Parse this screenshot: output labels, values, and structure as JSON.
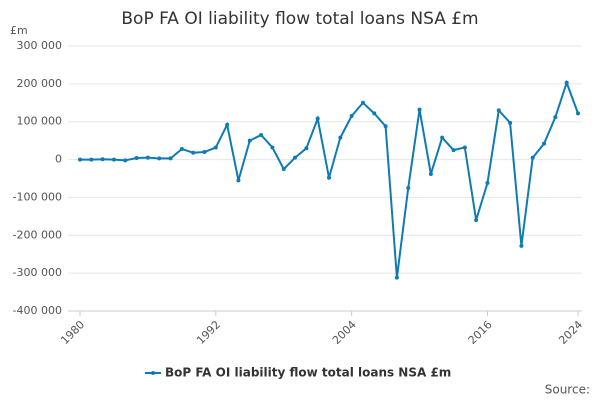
{
  "chart_data": {
    "type": "line",
    "title": "BoP FA OI liability flow total loans NSA £m",
    "y_unit": "£m",
    "source": "Source:",
    "x": [
      1980,
      1981,
      1982,
      1983,
      1984,
      1985,
      1986,
      1987,
      1988,
      1989,
      1990,
      1991,
      1992,
      1993,
      1994,
      1995,
      1996,
      1997,
      1998,
      1999,
      2000,
      2001,
      2002,
      2003,
      2004,
      2005,
      2006,
      2007,
      2008,
      2009,
      2010,
      2011,
      2012,
      2013,
      2014,
      2015,
      2016,
      2017,
      2018,
      2019,
      2020,
      2021,
      2022,
      2023,
      2024
    ],
    "series": [
      {
        "name": "BoP FA OI liability flow total loans NSA £m",
        "color": "#0f7bb5",
        "values": [
          0,
          0,
          1000,
          0,
          -2000,
          4000,
          5000,
          3000,
          3000,
          28000,
          18000,
          20000,
          32000,
          92000,
          -55000,
          50000,
          65000,
          32000,
          -25000,
          5000,
          30000,
          108000,
          -48000,
          58000,
          115000,
          150000,
          122000,
          88000,
          -312000,
          -75000,
          132000,
          -38000,
          58000,
          25000,
          32000,
          -160000,
          -62000,
          130000,
          97000,
          -228000,
          5000,
          42000,
          112000,
          203000,
          122000
        ]
      }
    ],
    "xlim": [
      1980,
      2024
    ],
    "xticks": [
      1980,
      1992,
      2004,
      2016,
      2024
    ],
    "ylim": [
      -400000,
      300000
    ],
    "yticks": [
      {
        "value": -400000,
        "label": "-400 000"
      },
      {
        "value": -300000,
        "label": "-300 000"
      },
      {
        "value": -200000,
        "label": "-200 000"
      },
      {
        "value": -100000,
        "label": "-100 000"
      },
      0,
      {
        "value": 100000,
        "label": "100 000"
      },
      {
        "value": 200000,
        "label": "200 000"
      },
      {
        "value": 300000,
        "label": "300 000"
      }
    ],
    "grid": true,
    "legend": "bottom"
  }
}
